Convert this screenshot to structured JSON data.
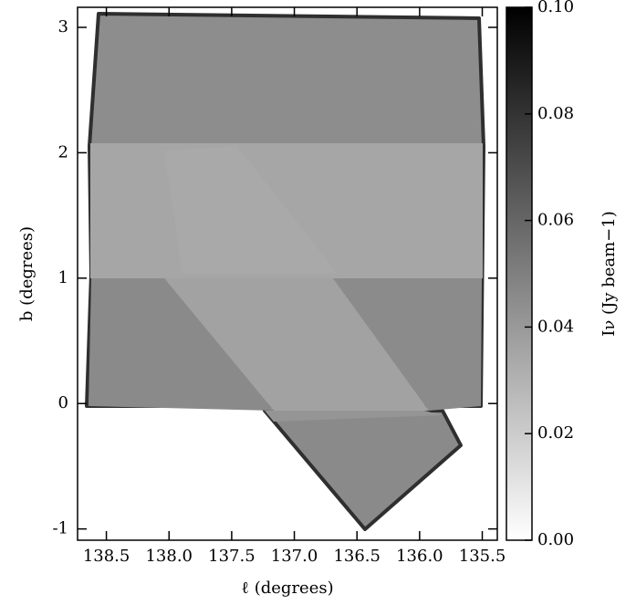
{
  "chart_data": {
    "type": "image",
    "xlabel": "ℓ (degrees)",
    "ylabel": "b (degrees)",
    "colorbar_label": "Iν (Jy beam−1)",
    "xlim": [
      138.73,
      135.38
    ],
    "xticks": [
      138.5,
      {
        "value": 138.0,
        "label": "138.0"
      },
      137.5,
      {
        "value": 137.0,
        "label": "137.0"
      },
      136.5,
      {
        "value": 136.0,
        "label": "136.0"
      },
      135.5
    ],
    "ylim": [
      -1.09,
      3.16
    ],
    "yticks": [
      -1,
      0,
      1,
      2,
      3
    ],
    "clim": [
      0,
      0.1
    ],
    "cticks": [
      {
        "value": 0,
        "label": "0.00"
      },
      {
        "value": 0.02,
        "label": "0.02"
      },
      {
        "value": 0.04,
        "label": "0.04"
      },
      {
        "value": 0.06,
        "label": "0.06"
      },
      {
        "value": 0.08,
        "label": "0.08"
      },
      {
        "value": 0.1,
        "label": "0.10"
      }
    ],
    "colormap": [
      "#ffffff",
      "#000000"
    ]
  }
}
